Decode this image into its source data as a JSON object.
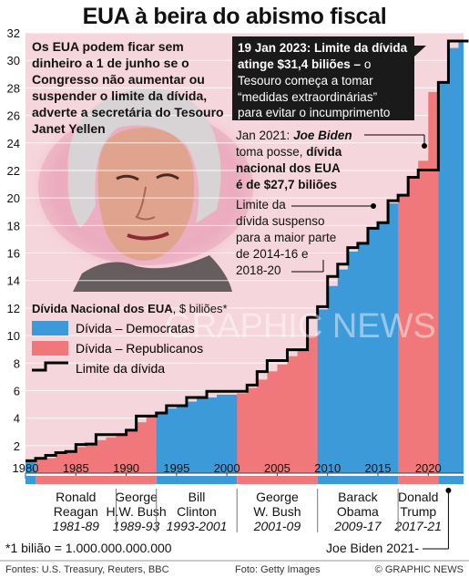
{
  "title": "EUA à beira do abismo fiscal",
  "headline_text": "Os EUA podem ficar sem dinheiro a 1 de junho se o Congresso não aumentar ou suspender o limite da dívida, adverte a secretária do Tesouro Janet Yellen",
  "callout_main": {
    "bold": "19 Jan 2023: Limite da dívida atinge $31,4 biliões –",
    "rest": "o Tesouro começa a tomar “medidas extraordinárias” para evitar o incumprimento"
  },
  "callout_2021": {
    "line1_plain": "Jan 2021: ",
    "line1_italic": "Joe Biden",
    "line2": "toma posse, dívida",
    "line3": "nacional dos EUA",
    "line4": "é de $27,7 biliões"
  },
  "callout_suspended": [
    "Limite da",
    "dívida suspenso",
    "para a maior parte",
    "de 2014-16 e",
    "2018-20"
  ],
  "legend": {
    "title_bold": "Dívida Nacional dos EUA",
    "title_unit": ", $ biliões*",
    "items": [
      {
        "label": "Dívida – Democratas",
        "color": "#3d9ad9"
      },
      {
        "label": "Dívida – Republicanos",
        "color": "#f0787a"
      },
      {
        "label": "Limite da dívida",
        "color": "#000000"
      }
    ]
  },
  "watermark": "GRAPHIC NEWS",
  "presidents": [
    {
      "name": "Ronald Reagan",
      "years": "1981-89",
      "party": "R"
    },
    {
      "name": "George H.W. Bush",
      "years": "1989-93",
      "party": "R"
    },
    {
      "name": "Bill Clinton",
      "years": "1993-2001",
      "party": "D"
    },
    {
      "name": "George W. Bush",
      "years": "2001-09",
      "party": "R"
    },
    {
      "name": "Barack Obama",
      "years": "2009-17",
      "party": "D"
    },
    {
      "name": "Donald Trump",
      "years": "2017-21",
      "party": "R"
    },
    {
      "name": "Joe Biden",
      "years": "2021-",
      "party": "D"
    }
  ],
  "footnote": "*1 bilião = 1.000.000.000.000",
  "sources": "Fontes: U.S. Treasury, Reuters, BBC",
  "photo_credit": "Foto: Getty Images",
  "copyright": "© GRAPHIC NEWS",
  "colors": {
    "democrat": "#3d9ad9",
    "republican": "#f0787a",
    "background": "#f5d6dc",
    "photo_glow": "#f2b3c8",
    "callout_bg": "#1a1a1a"
  },
  "chart_data": {
    "type": "area",
    "xlabel": "",
    "ylabel": "",
    "x_ticks": [
      1980,
      1985,
      1990,
      1995,
      2000,
      2005,
      2010,
      2015,
      2020
    ],
    "y_ticks": [
      2,
      4,
      6,
      8,
      10,
      12,
      14,
      16,
      18,
      20,
      22,
      24,
      26,
      28,
      30,
      32
    ],
    "xlim": [
      1980,
      2023.5
    ],
    "ylim": [
      0,
      32
    ],
    "grid": true,
    "series": [
      {
        "name": "Dívida – Democratas / Republicanos",
        "x": [
          1980,
          1981,
          1982,
          1983,
          1984,
          1985,
          1986,
          1987,
          1988,
          1989,
          1990,
          1991,
          1992,
          1993,
          1994,
          1995,
          1996,
          1997,
          1998,
          1999,
          2000,
          2001,
          2002,
          2003,
          2004,
          2005,
          2006,
          2007,
          2008,
          2009,
          2010,
          2011,
          2012,
          2013,
          2014,
          2015,
          2016,
          2017,
          2018,
          2019,
          2020,
          2021,
          2022,
          2023
        ],
        "values": [
          0.9,
          1.0,
          1.1,
          1.4,
          1.6,
          1.9,
          2.2,
          2.4,
          2.6,
          2.9,
          3.2,
          3.7,
          4.1,
          4.4,
          4.7,
          4.9,
          5.2,
          5.4,
          5.5,
          5.7,
          5.7,
          5.8,
          6.2,
          6.8,
          7.4,
          7.9,
          8.5,
          9.0,
          10.0,
          11.9,
          13.6,
          14.8,
          16.1,
          16.7,
          17.8,
          18.2,
          19.6,
          20.2,
          21.5,
          22.7,
          27.7,
          28.4,
          30.9,
          31.4
        ]
      },
      {
        "name": "Limite da dívida",
        "x": [
          1980,
          1981,
          1982,
          1983,
          1984,
          1985,
          1986,
          1987,
          1988,
          1989,
          1990,
          1991,
          1992,
          1993,
          1994,
          1995,
          1996,
          1997,
          1998,
          1999,
          2000,
          2001,
          2002,
          2003,
          2004,
          2005,
          2006,
          2007,
          2008,
          2009,
          2010,
          2011,
          2012,
          2013,
          2014,
          2015,
          2016,
          2017,
          2018,
          2019,
          2020,
          2021,
          2022,
          2023
        ],
        "values": [
          0.9,
          1.08,
          1.29,
          1.49,
          1.57,
          2.08,
          2.11,
          2.8,
          2.8,
          2.8,
          3.12,
          4.15,
          4.15,
          4.37,
          4.9,
          4.9,
          5.5,
          5.5,
          5.95,
          5.95,
          5.95,
          5.95,
          6.4,
          7.38,
          8.18,
          8.18,
          8.97,
          8.97,
          11.32,
          12.1,
          14.29,
          15.19,
          16.39,
          16.7,
          17.8,
          18.2,
          19.8,
          20.2,
          21.5,
          22.03,
          22.03,
          28.4,
          31.4,
          31.4
        ]
      }
    ]
  }
}
